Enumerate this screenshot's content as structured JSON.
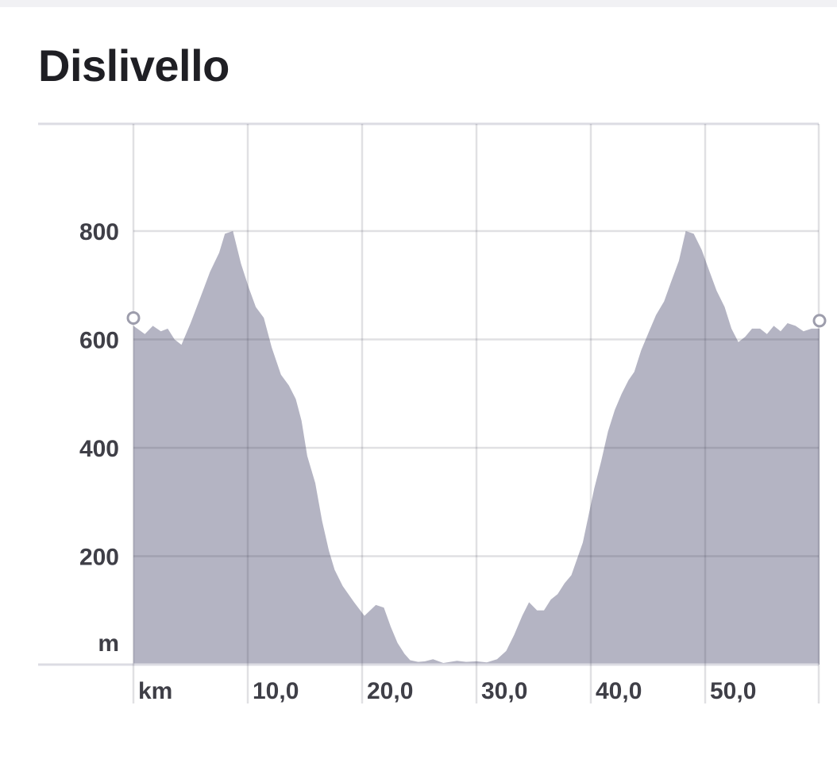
{
  "title": "Dislivello",
  "chart_data": {
    "type": "area",
    "title": "Dislivello",
    "y_unit_label": "m",
    "x_unit_label": "km",
    "y_ticks": [
      "200",
      "400",
      "600",
      "800"
    ],
    "x_ticks": [
      "10,0",
      "20,0",
      "30,0",
      "40,0",
      "50,0"
    ],
    "xlim": [
      0,
      60
    ],
    "ylim": [
      0,
      1000
    ],
    "grid": true,
    "colors": {
      "fill": "#b4b4c3",
      "grid": "#d6d6de",
      "axis": "#dcdce3",
      "tick_text": "#3f3f47"
    },
    "series": [
      {
        "x": [
          0,
          1,
          1.7,
          2.4,
          3,
          3.6,
          4.2,
          5,
          5.9,
          6.7,
          7.5,
          8,
          8.7,
          9.4,
          10.1,
          10.7,
          11.4,
          12.1,
          12.9,
          13.6,
          14.2,
          14.7,
          15.2,
          15.9,
          16.5,
          17.1,
          17.6,
          18.3,
          19.3,
          20.2,
          21.2,
          21.9,
          22.5,
          23.1,
          23.7,
          24.2,
          24.9,
          25.5,
          26.2,
          27.1,
          28.3,
          29.1,
          30,
          30.9,
          31.8,
          32.6,
          33.3,
          34,
          34.6,
          35.3,
          35.9,
          36.5,
          37.1,
          37.7,
          38.3,
          39.3,
          40.3,
          40.9,
          41.5,
          42.1,
          42.7,
          43.3,
          43.8,
          44.4,
          45.1,
          45.7,
          46.4,
          47,
          47.7,
          48.3,
          49,
          49.7,
          50.3,
          51,
          51.7,
          52.3,
          52.9,
          53.5,
          54.1,
          54.8,
          55.4,
          56,
          56.6,
          57.2,
          57.9,
          58.6,
          59.3,
          60
        ],
        "y": [
          625,
          610,
          625,
          615,
          620,
          600,
          590,
          630,
          680,
          725,
          760,
          795,
          800,
          740,
          695,
          660,
          640,
          585,
          535,
          515,
          490,
          450,
          385,
          335,
          265,
          210,
          175,
          145,
          115,
          90,
          110,
          105,
          70,
          40,
          20,
          8,
          5,
          6,
          10,
          3,
          7,
          5,
          6,
          4,
          10,
          25,
          55,
          90,
          115,
          100,
          100,
          120,
          130,
          150,
          165,
          225,
          325,
          375,
          430,
          470,
          500,
          525,
          540,
          580,
          615,
          645,
          670,
          705,
          745,
          800,
          795,
          765,
          730,
          690,
          660,
          620,
          595,
          605,
          620,
          620,
          610,
          625,
          615,
          630,
          625,
          615,
          620,
          620
        ]
      }
    ]
  }
}
